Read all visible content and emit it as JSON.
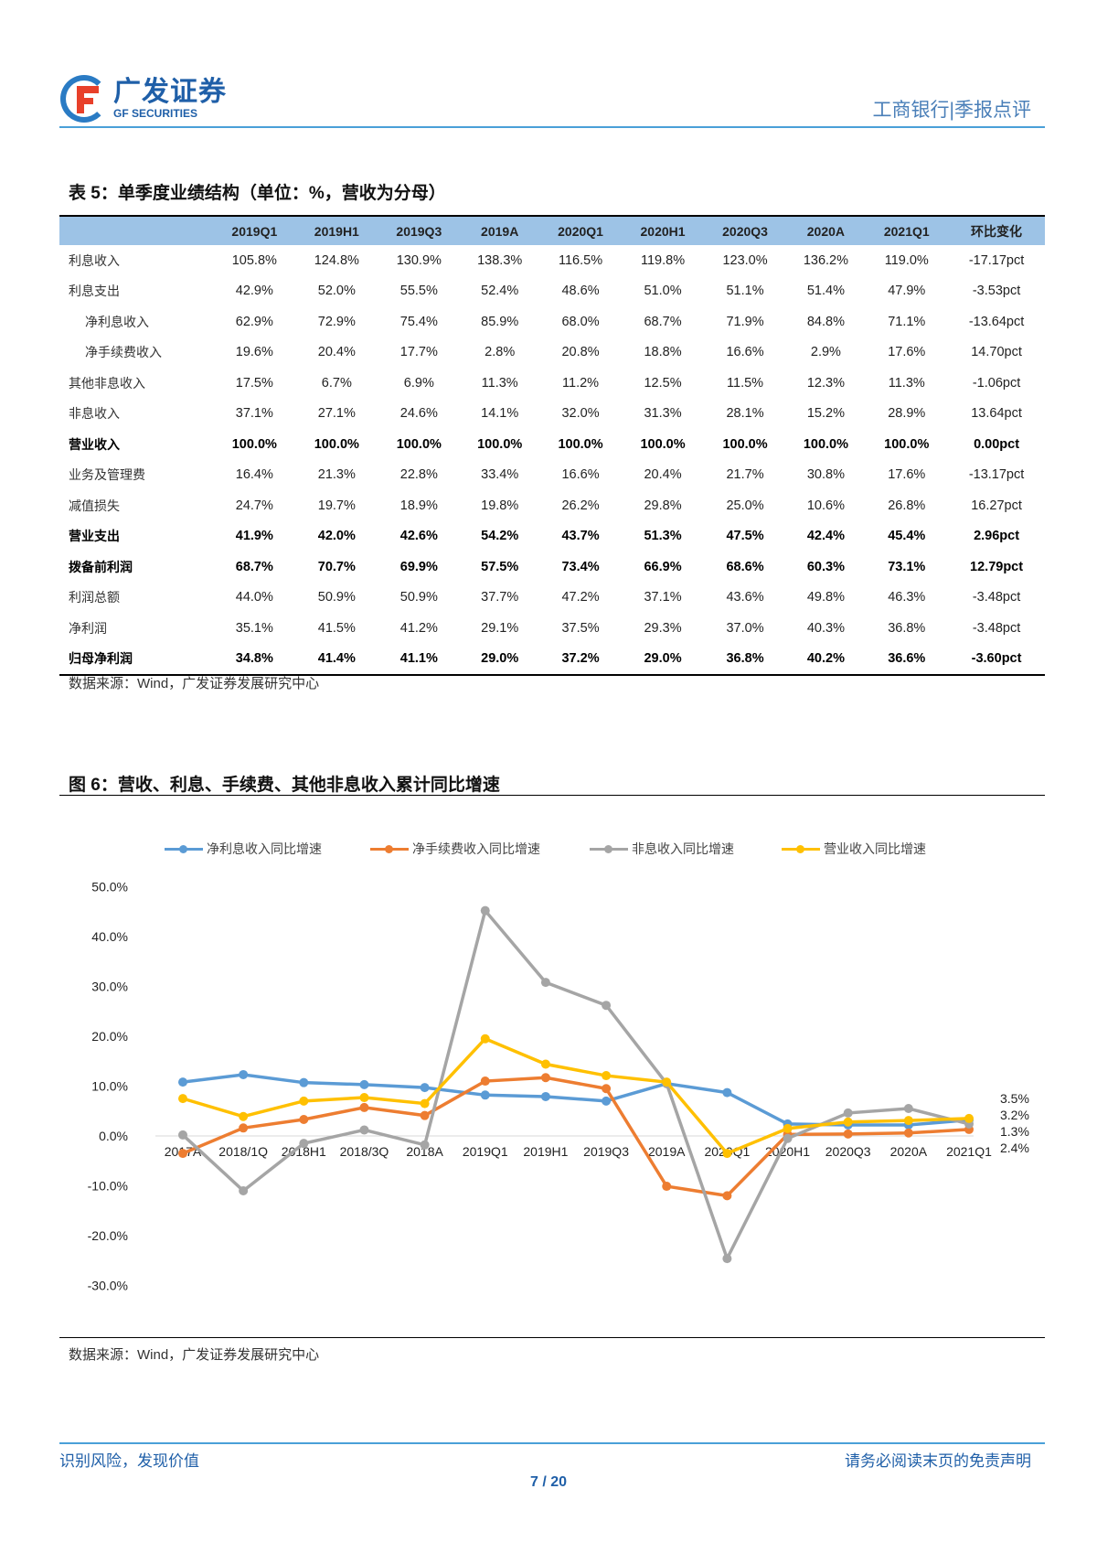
{
  "header": {
    "logo_cn": "广发证券",
    "logo_en": "GF SECURITIES",
    "doc_title": "工商银行|季报点评"
  },
  "table": {
    "title": "表 5：单季度业绩结构（单位：%，营收为分母）",
    "columns": [
      "",
      "2019Q1",
      "2019H1",
      "2019Q3",
      "2019A",
      "2020Q1",
      "2020H1",
      "2020Q3",
      "2020A",
      "2021Q1",
      "环比变化"
    ],
    "rows": [
      {
        "label": "利息收入",
        "indent": false,
        "bold": false,
        "values": [
          "105.8%",
          "124.8%",
          "130.9%",
          "138.3%",
          "116.5%",
          "119.8%",
          "123.0%",
          "136.2%",
          "119.0%",
          "-17.17pct"
        ]
      },
      {
        "label": "利息支出",
        "indent": false,
        "bold": false,
        "values": [
          "42.9%",
          "52.0%",
          "55.5%",
          "52.4%",
          "48.6%",
          "51.0%",
          "51.1%",
          "51.4%",
          "47.9%",
          "-3.53pct"
        ]
      },
      {
        "label": "净利息收入",
        "indent": true,
        "bold": false,
        "values": [
          "62.9%",
          "72.9%",
          "75.4%",
          "85.9%",
          "68.0%",
          "68.7%",
          "71.9%",
          "84.8%",
          "71.1%",
          "-13.64pct"
        ]
      },
      {
        "label": "净手续费收入",
        "indent": true,
        "bold": false,
        "values": [
          "19.6%",
          "20.4%",
          "17.7%",
          "2.8%",
          "20.8%",
          "18.8%",
          "16.6%",
          "2.9%",
          "17.6%",
          "14.70pct"
        ]
      },
      {
        "label": "其他非息收入",
        "indent": false,
        "bold": false,
        "values": [
          "17.5%",
          "6.7%",
          "6.9%",
          "11.3%",
          "11.2%",
          "12.5%",
          "11.5%",
          "12.3%",
          "11.3%",
          "-1.06pct"
        ]
      },
      {
        "label": "非息收入",
        "indent": false,
        "bold": false,
        "values": [
          "37.1%",
          "27.1%",
          "24.6%",
          "14.1%",
          "32.0%",
          "31.3%",
          "28.1%",
          "15.2%",
          "28.9%",
          "13.64pct"
        ]
      },
      {
        "label": "营业收入",
        "indent": false,
        "bold": true,
        "values": [
          "100.0%",
          "100.0%",
          "100.0%",
          "100.0%",
          "100.0%",
          "100.0%",
          "100.0%",
          "100.0%",
          "100.0%",
          "0.00pct"
        ]
      },
      {
        "label": "业务及管理费",
        "indent": false,
        "bold": false,
        "values": [
          "16.4%",
          "21.3%",
          "22.8%",
          "33.4%",
          "16.6%",
          "20.4%",
          "21.7%",
          "30.8%",
          "17.6%",
          "-13.17pct"
        ]
      },
      {
        "label": "减值损失",
        "indent": false,
        "bold": false,
        "values": [
          "24.7%",
          "19.7%",
          "18.9%",
          "19.8%",
          "26.2%",
          "29.8%",
          "25.0%",
          "10.6%",
          "26.8%",
          "16.27pct"
        ]
      },
      {
        "label": "营业支出",
        "indent": false,
        "bold": true,
        "values": [
          "41.9%",
          "42.0%",
          "42.6%",
          "54.2%",
          "43.7%",
          "51.3%",
          "47.5%",
          "42.4%",
          "45.4%",
          "2.96pct"
        ]
      },
      {
        "label": "拨备前利润",
        "indent": false,
        "bold": true,
        "values": [
          "68.7%",
          "70.7%",
          "69.9%",
          "57.5%",
          "73.4%",
          "66.9%",
          "68.6%",
          "60.3%",
          "73.1%",
          "12.79pct"
        ]
      },
      {
        "label": "利润总额",
        "indent": false,
        "bold": false,
        "values": [
          "44.0%",
          "50.9%",
          "50.9%",
          "37.7%",
          "47.2%",
          "37.1%",
          "43.6%",
          "49.8%",
          "46.3%",
          "-3.48pct"
        ]
      },
      {
        "label": "净利润",
        "indent": false,
        "bold": false,
        "values": [
          "35.1%",
          "41.5%",
          "41.2%",
          "29.1%",
          "37.5%",
          "29.3%",
          "37.0%",
          "40.3%",
          "36.8%",
          "-3.48pct"
        ]
      },
      {
        "label": "归母净利润",
        "indent": false,
        "bold": true,
        "values": [
          "34.8%",
          "41.4%",
          "41.1%",
          "29.0%",
          "37.2%",
          "29.0%",
          "36.8%",
          "40.2%",
          "36.6%",
          "-3.60pct"
        ]
      }
    ],
    "source": "数据来源：Wind，广发证券发展研究中心"
  },
  "figure": {
    "title": "图 6：营收、利息、手续费、其他非息收入累计同比增速",
    "source": "数据来源：Wind，广发证券发展研究中心"
  },
  "chart_data": {
    "type": "line",
    "title": "营收、利息、手续费、其他非息收入累计同比增速",
    "categories": [
      "2017A",
      "2018/1Q",
      "2018H1",
      "2018/3Q",
      "2018A",
      "2019Q1",
      "2019H1",
      "2019Q3",
      "2019A",
      "2020Q1",
      "2020H1",
      "2020Q3",
      "2020A",
      "2021Q1"
    ],
    "ylim": [
      -30,
      50
    ],
    "yticks": [
      50,
      40,
      30,
      20,
      10,
      0,
      -10,
      -20,
      -30
    ],
    "ytick_labels": [
      "50.0%",
      "40.0%",
      "30.0%",
      "20.0%",
      "10.0%",
      "0.0%",
      "-10.0%",
      "-20.0%",
      "-30.0%"
    ],
    "legend_position": "top",
    "series": [
      {
        "name": "净利息收入同比增速",
        "color": "#5b9bd5",
        "values": [
          10.8,
          12.3,
          10.7,
          10.3,
          9.7,
          8.2,
          7.9,
          7.0,
          10.5,
          8.7,
          2.4,
          2.2,
          2.2,
          3.2
        ],
        "end_label": "3.2%"
      },
      {
        "name": "净手续费收入同比增速",
        "color": "#ed7d31",
        "values": [
          -3.5,
          1.6,
          3.3,
          5.7,
          4.1,
          11.0,
          11.7,
          9.5,
          -10.1,
          -12.0,
          0.3,
          0.4,
          0.6,
          1.3
        ],
        "end_label": "1.3%"
      },
      {
        "name": "非息收入同比增速",
        "color": "#a5a5a5",
        "values": [
          0.2,
          -11.0,
          -1.5,
          1.2,
          -1.8,
          45.2,
          30.8,
          26.2,
          10.5,
          -24.6,
          -0.5,
          4.6,
          5.5,
          2.4
        ],
        "end_label": "2.4%"
      },
      {
        "name": "营业收入同比增速",
        "color": "#ffc000",
        "values": [
          7.5,
          3.9,
          7.0,
          7.7,
          6.5,
          19.5,
          14.4,
          12.1,
          10.8,
          -3.5,
          1.5,
          2.8,
          3.1,
          3.5
        ],
        "end_label": "3.5%"
      }
    ]
  },
  "footer": {
    "left": "识别风险，发现价值",
    "right": "请务必阅读末页的免责声明",
    "page": "7 / 20"
  }
}
